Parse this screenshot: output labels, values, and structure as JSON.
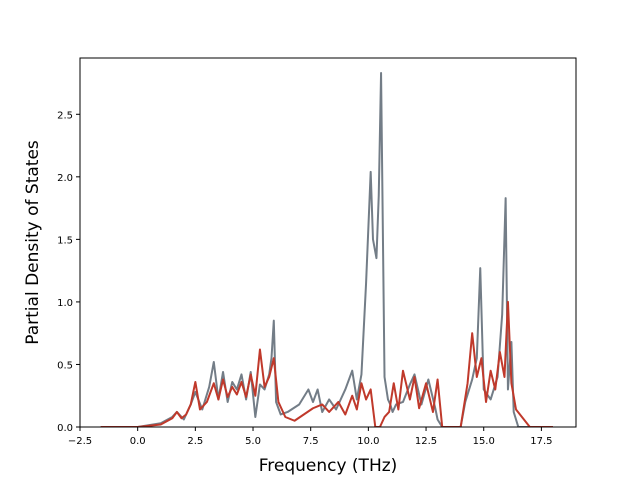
{
  "chart_data": {
    "type": "line",
    "title": "",
    "xlabel": "Frequency (THz)",
    "ylabel": "Partial Density of States",
    "xlim": [
      -2.5,
      19.0
    ],
    "ylim": [
      0,
      2.95
    ],
    "xticks": [
      -2.5,
      0.0,
      2.5,
      5.0,
      7.5,
      10.0,
      12.5,
      15.0,
      17.5
    ],
    "xtick_labels": [
      "−2.5",
      "0.0",
      "2.5",
      "5.0",
      "7.5",
      "10.0",
      "12.5",
      "15.0",
      "17.5"
    ],
    "yticks": [
      0.0,
      0.5,
      1.0,
      1.5,
      2.0,
      2.5
    ],
    "ytick_labels": [
      "0.0",
      "0.5",
      "1.0",
      "1.5",
      "2.0",
      "2.5"
    ],
    "grid": false,
    "legend": "none",
    "series": [
      {
        "color": "#737d87",
        "x": [
          -1.6,
          0.0,
          1.0,
          1.5,
          1.7,
          2.0,
          2.3,
          2.5,
          2.8,
          3.1,
          3.3,
          3.5,
          3.7,
          3.9,
          4.1,
          4.3,
          4.5,
          4.7,
          4.9,
          5.1,
          5.3,
          5.5,
          5.7,
          5.8,
          5.9,
          6.0,
          6.2,
          6.5,
          7.0,
          7.4,
          7.6,
          7.8,
          8.0,
          8.3,
          8.6,
          9.0,
          9.3,
          9.5,
          9.7,
          9.9,
          10.1,
          10.2,
          10.35,
          10.45,
          10.55,
          10.7,
          10.85,
          10.95,
          11.05,
          11.2,
          11.5,
          11.8,
          12.0,
          12.3,
          12.6,
          12.9,
          13.0,
          13.2,
          14.0,
          14.2,
          14.5,
          14.7,
          14.85,
          15.0,
          15.3,
          15.6,
          15.8,
          15.95,
          16.05,
          16.2,
          16.3,
          16.5,
          17.0,
          18.0
        ],
        "y": [
          0.0,
          0.0,
          0.03,
          0.08,
          0.12,
          0.06,
          0.18,
          0.28,
          0.14,
          0.32,
          0.52,
          0.22,
          0.44,
          0.2,
          0.36,
          0.3,
          0.42,
          0.22,
          0.44,
          0.08,
          0.34,
          0.3,
          0.42,
          0.55,
          0.85,
          0.2,
          0.1,
          0.12,
          0.18,
          0.3,
          0.2,
          0.3,
          0.12,
          0.22,
          0.14,
          0.3,
          0.45,
          0.22,
          0.42,
          1.15,
          2.04,
          1.5,
          1.35,
          1.85,
          2.83,
          0.4,
          0.22,
          0.18,
          0.12,
          0.18,
          0.2,
          0.34,
          0.42,
          0.18,
          0.38,
          0.15,
          0.06,
          0.0,
          0.0,
          0.2,
          0.38,
          0.55,
          1.27,
          0.3,
          0.22,
          0.4,
          0.9,
          1.83,
          0.3,
          0.68,
          0.12,
          0.0,
          0.0,
          0.0
        ]
      },
      {
        "color": "#c0392b",
        "x": [
          -1.6,
          0.0,
          1.0,
          1.5,
          1.7,
          1.9,
          2.1,
          2.3,
          2.5,
          2.7,
          3.0,
          3.3,
          3.5,
          3.7,
          3.9,
          4.1,
          4.3,
          4.5,
          4.7,
          4.9,
          5.1,
          5.3,
          5.5,
          5.7,
          5.9,
          6.1,
          6.4,
          6.8,
          7.2,
          7.6,
          8.0,
          8.3,
          8.7,
          9.0,
          9.3,
          9.5,
          9.7,
          9.9,
          10.1,
          10.3,
          10.5,
          10.7,
          10.9,
          11.1,
          11.3,
          11.5,
          11.8,
          12.0,
          12.2,
          12.5,
          12.8,
          13.0,
          13.2,
          14.0,
          14.3,
          14.5,
          14.7,
          14.9,
          15.1,
          15.3,
          15.5,
          15.7,
          15.9,
          16.05,
          16.2,
          16.4,
          17.0,
          18.0
        ],
        "y": [
          0.0,
          0.0,
          0.02,
          0.07,
          0.12,
          0.07,
          0.1,
          0.18,
          0.36,
          0.14,
          0.2,
          0.35,
          0.22,
          0.38,
          0.24,
          0.32,
          0.26,
          0.36,
          0.24,
          0.42,
          0.25,
          0.62,
          0.32,
          0.4,
          0.55,
          0.2,
          0.08,
          0.05,
          0.1,
          0.15,
          0.18,
          0.12,
          0.2,
          0.1,
          0.25,
          0.14,
          0.35,
          0.22,
          0.3,
          0.0,
          0.0,
          0.08,
          0.12,
          0.35,
          0.14,
          0.45,
          0.22,
          0.4,
          0.15,
          0.35,
          0.12,
          0.38,
          0.0,
          0.0,
          0.35,
          0.75,
          0.4,
          0.55,
          0.2,
          0.45,
          0.3,
          0.6,
          0.4,
          1.0,
          0.35,
          0.14,
          0.0,
          0.0
        ]
      }
    ]
  }
}
